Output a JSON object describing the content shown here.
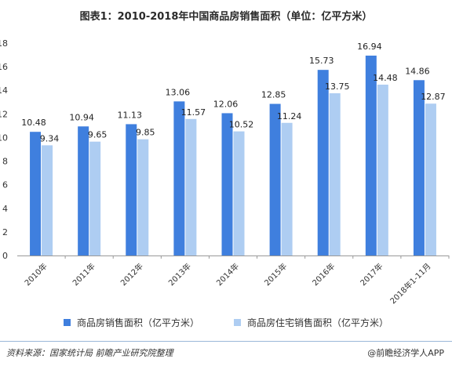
{
  "title": "图表1：2010-2018年中国商品房销售面积（单位：亿平方米）",
  "chart_data": {
    "type": "bar",
    "categories": [
      "2010年",
      "2011年",
      "2012年",
      "2013年",
      "2014年",
      "2015年",
      "2016年",
      "2017年",
      "2018年1-11月"
    ],
    "series": [
      {
        "name": "商品房销售面积（亿平方米）",
        "color": "#3f7fde",
        "values": [
          10.48,
          10.94,
          11.13,
          13.06,
          12.06,
          12.85,
          15.73,
          16.94,
          14.86
        ]
      },
      {
        "name": "商品房住宅销售面积（亿平方米）",
        "color": "#aecdf2",
        "values": [
          9.34,
          9.65,
          9.85,
          11.57,
          10.52,
          11.24,
          13.75,
          14.48,
          12.87
        ]
      }
    ],
    "yticks": [
      0,
      2,
      4,
      6,
      8,
      10,
      12,
      14,
      16,
      18
    ],
    "ylim": [
      0,
      18
    ],
    "grid": false,
    "legend_position": "bottom"
  },
  "footer": {
    "source": "资料来源：国家统计局  前瞻产业研究院整理",
    "brand": "@前瞻经济学人APP"
  }
}
